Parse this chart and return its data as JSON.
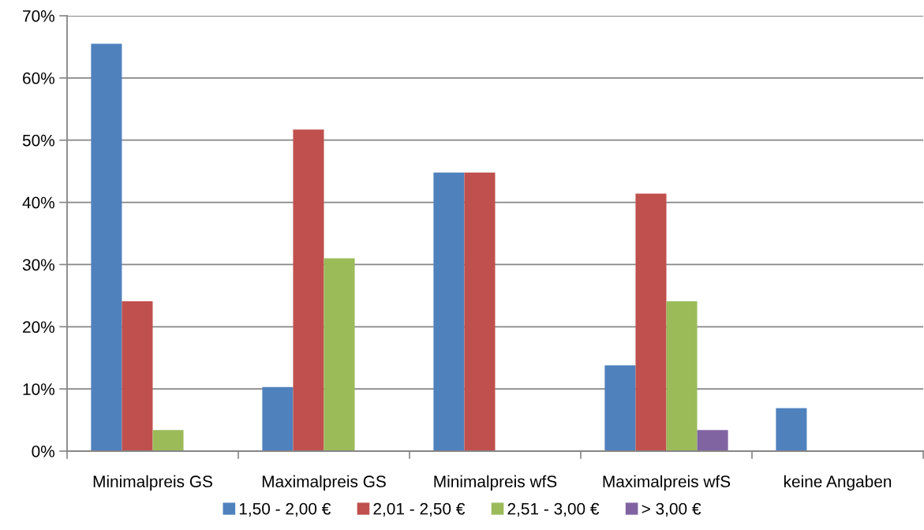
{
  "chart_data": {
    "type": "bar",
    "categories": [
      "Minimalpreis GS",
      "Maximalpreis GS",
      "Minimalpreis wfS",
      "Maximalpreis wfS",
      "keine Angaben"
    ],
    "series": [
      {
        "name": "1,50 - 2,00 €",
        "color": "#4f81bd",
        "values": [
          65.5,
          10.3,
          44.8,
          13.8,
          6.9
        ]
      },
      {
        "name": "2,01 - 2,50 €",
        "color": "#c0504d",
        "values": [
          24.1,
          51.7,
          44.8,
          41.4,
          null
        ]
      },
      {
        "name": "2,51 - 3,00 €",
        "color": "#9bbb59",
        "values": [
          3.4,
          31.0,
          null,
          24.1,
          null
        ]
      },
      {
        "name": "> 3,00 €",
        "color": "#8064a2",
        "values": [
          null,
          null,
          null,
          3.4,
          null
        ]
      }
    ],
    "ylim": [
      0,
      70
    ],
    "yticks": [
      {
        "value": 0,
        "label": "0%"
      },
      {
        "value": 10,
        "label": "10%"
      },
      {
        "value": 20,
        "label": "20%"
      },
      {
        "value": 30,
        "label": "30%"
      },
      {
        "value": 40,
        "label": "40%"
      },
      {
        "value": 50,
        "label": "50%"
      },
      {
        "value": 60,
        "label": "60%"
      },
      {
        "value": 70,
        "label": "70%"
      }
    ],
    "grid": "y",
    "legend": "bottom"
  }
}
